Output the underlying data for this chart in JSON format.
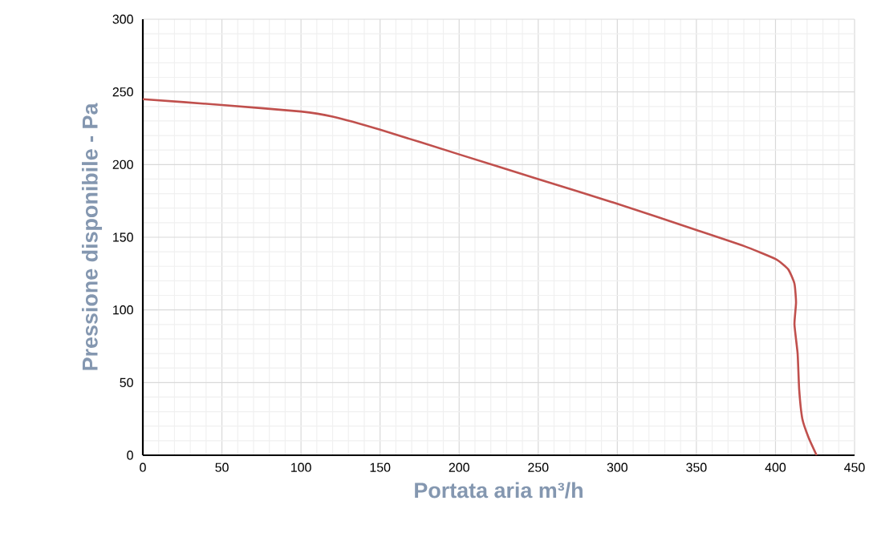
{
  "chart_data": {
    "type": "line",
    "xlabel": "Portata aria m³/h",
    "ylabel": "Pressione disponibile - Pa",
    "x": [
      0,
      50,
      100,
      120,
      150,
      200,
      250,
      300,
      350,
      380,
      400,
      408,
      412,
      413,
      412,
      414,
      415,
      417,
      421,
      426
    ],
    "series": [
      {
        "color": "#c0504d",
        "values": [
          245,
          241,
          236.5,
          233,
          224,
          207,
          190,
          173,
          155,
          144,
          135,
          128,
          118,
          105,
          90,
          70,
          45,
          25,
          12,
          0
        ]
      }
    ],
    "xlim": [
      0,
      450
    ],
    "ylim": [
      0,
      300
    ],
    "xticks": [
      0,
      50,
      100,
      150,
      200,
      250,
      300,
      350,
      400,
      450
    ],
    "yticks": [
      0,
      50,
      100,
      150,
      200,
      250,
      300
    ],
    "grid": true,
    "marker": "none",
    "line_style": "solid"
  }
}
